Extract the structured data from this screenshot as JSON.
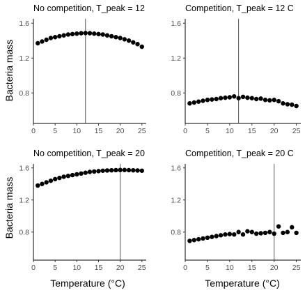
{
  "figure": {
    "ylabel": "Bacteria mass",
    "xlabel": "Temperature (°C)"
  },
  "chart_data": [
    {
      "type": "scatter",
      "title": "No competition, T_peak = 12",
      "xlabel": "",
      "ylabel": "Bacteria mass",
      "xlim": [
        0,
        26
      ],
      "ylim": [
        0.45,
        1.65
      ],
      "xticks": [
        0,
        5,
        10,
        15,
        20,
        25
      ],
      "yticks": [
        0.8,
        1.2,
        1.6
      ],
      "vline": 12,
      "x": [
        1,
        2,
        3,
        4,
        5,
        6,
        7,
        8,
        9,
        10,
        11,
        12,
        13,
        14,
        15,
        16,
        17,
        18,
        19,
        20,
        21,
        22,
        23,
        24,
        25
      ],
      "y": [
        1.37,
        1.39,
        1.41,
        1.43,
        1.44,
        1.45,
        1.46,
        1.47,
        1.475,
        1.48,
        1.485,
        1.487,
        1.485,
        1.48,
        1.475,
        1.47,
        1.46,
        1.45,
        1.44,
        1.43,
        1.415,
        1.4,
        1.38,
        1.36,
        1.33
      ]
    },
    {
      "type": "scatter",
      "title": "Competition, T_peak = 12 C",
      "xlabel": "",
      "ylabel": "",
      "xlim": [
        0,
        26
      ],
      "ylim": [
        0.45,
        1.65
      ],
      "xticks": [
        0,
        5,
        10,
        15,
        20,
        25
      ],
      "yticks": [
        0.8,
        1.2,
        1.6
      ],
      "vline": 12,
      "x": [
        1,
        2,
        3,
        4,
        5,
        6,
        7,
        8,
        9,
        10,
        11,
        12,
        13,
        14,
        15,
        16,
        17,
        18,
        19,
        20,
        21,
        22,
        23,
        24,
        25
      ],
      "y": [
        0.68,
        0.69,
        0.7,
        0.71,
        0.72,
        0.725,
        0.73,
        0.74,
        0.745,
        0.75,
        0.76,
        0.74,
        0.755,
        0.745,
        0.74,
        0.73,
        0.735,
        0.72,
        0.715,
        0.72,
        0.705,
        0.68,
        0.67,
        0.665,
        0.65
      ]
    },
    {
      "type": "scatter",
      "title": "No competition, T_peak = 20",
      "xlabel": "Temperature (°C)",
      "ylabel": "Bacteria mass",
      "xlim": [
        0,
        26
      ],
      "ylim": [
        0.45,
        1.65
      ],
      "xticks": [
        0,
        5,
        10,
        15,
        20,
        25
      ],
      "yticks": [
        0.8,
        1.2,
        1.6
      ],
      "vline": 20,
      "x": [
        1,
        2,
        3,
        4,
        5,
        6,
        7,
        8,
        9,
        10,
        11,
        12,
        13,
        14,
        15,
        16,
        17,
        18,
        19,
        20,
        21,
        22,
        23,
        24,
        25
      ],
      "y": [
        1.38,
        1.4,
        1.42,
        1.44,
        1.46,
        1.475,
        1.49,
        1.5,
        1.51,
        1.52,
        1.53,
        1.54,
        1.55,
        1.555,
        1.56,
        1.565,
        1.568,
        1.57,
        1.572,
        1.574,
        1.574,
        1.572,
        1.57,
        1.568,
        1.565
      ]
    },
    {
      "type": "scatter",
      "title": "Competition, T_peak = 20 C",
      "xlabel": "Temperature (°C)",
      "ylabel": "",
      "xlim": [
        0,
        26
      ],
      "ylim": [
        0.45,
        1.65
      ],
      "xticks": [
        0,
        5,
        10,
        15,
        20,
        25
      ],
      "yticks": [
        0.8,
        1.2,
        1.6
      ],
      "vline": 20,
      "x": [
        1,
        2,
        3,
        4,
        5,
        6,
        7,
        8,
        9,
        10,
        11,
        12,
        13,
        14,
        15,
        16,
        17,
        18,
        19,
        20,
        21,
        22,
        23,
        24,
        25
      ],
      "y": [
        0.69,
        0.7,
        0.71,
        0.72,
        0.73,
        0.74,
        0.75,
        0.76,
        0.77,
        0.775,
        0.77,
        0.8,
        0.77,
        0.81,
        0.8,
        0.78,
        0.785,
        0.79,
        0.8,
        0.78,
        0.87,
        0.79,
        0.8,
        0.86,
        0.79
      ]
    }
  ]
}
